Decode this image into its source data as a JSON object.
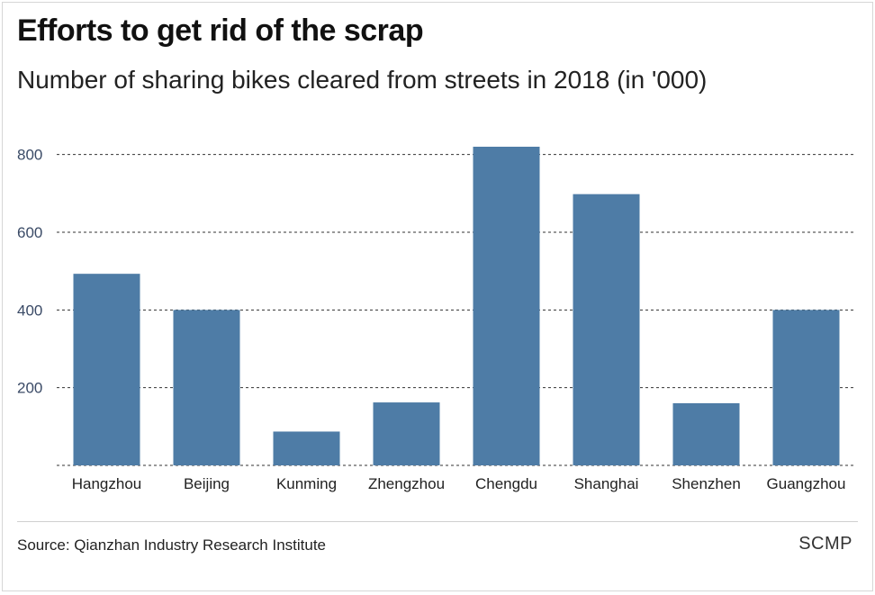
{
  "header": {
    "title": "Efforts to get rid of the scrap",
    "subtitle": "Number of sharing bikes cleared from streets in 2018 (in '000)"
  },
  "footer": {
    "source": "Source: Qianzhan Industry Research Institute",
    "brand": "SCMP"
  },
  "colors": {
    "bar": "#4e7ca6",
    "grid": "#333333",
    "tick_label": "#3a4a66"
  },
  "chart_data": {
    "type": "bar",
    "title": "Efforts to get rid of the scrap",
    "subtitle": "Number of sharing bikes cleared from streets in 2018 (in '000)",
    "xlabel": "",
    "ylabel": "",
    "categories": [
      "Hangzhou",
      "Beijing",
      "Kunming",
      "Zhengzhou",
      "Chengdu",
      "Shanghai",
      "Shenzhen",
      "Guangzhou"
    ],
    "values": [
      493,
      400,
      87,
      162,
      820,
      698,
      160,
      400
    ],
    "ylim": [
      0,
      820
    ],
    "yticks": [
      200,
      400,
      600,
      800
    ],
    "ytick_labels": [
      "200",
      "400",
      "600",
      "800"
    ],
    "grid": true,
    "grid_style": "dashed",
    "legend": "none"
  }
}
